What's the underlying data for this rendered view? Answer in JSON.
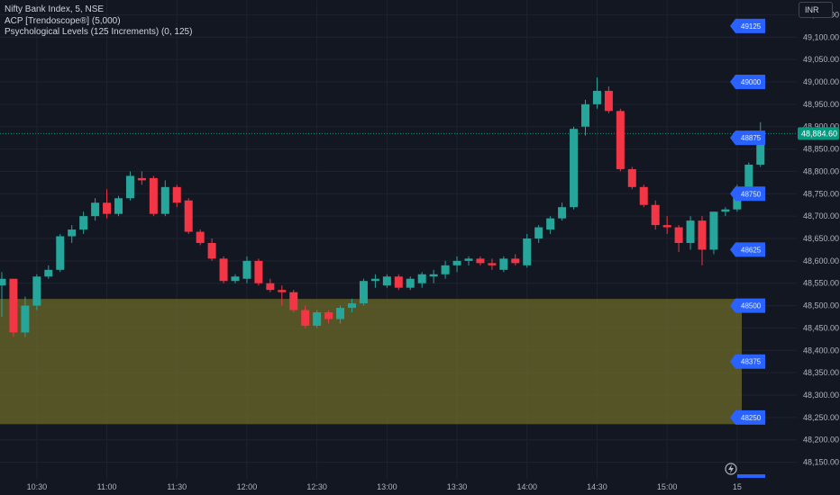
{
  "legend": {
    "symbol": "Nifty Bank Index, 5, NSE",
    "indicator_1": "ACP [Trendoscope®] (5,000)",
    "indicator_2": "Psychological Levels (125 Increments) (0, 125)"
  },
  "currency_button": "INR",
  "colors": {
    "background": "#131722",
    "up": "#26a69a",
    "down": "#f23645",
    "grid": "#1f2330",
    "zone": "#6b6a2a",
    "level_tag": "#2962ff",
    "last_price": "#089981"
  },
  "icons": {
    "replay": "lightning-icon"
  },
  "chart_data": {
    "type": "candlestick",
    "title": "Nifty Bank Index, 5, NSE",
    "ylim": [
      48125,
      49200
    ],
    "y_ticks": [
      48150,
      48200,
      48250,
      48300,
      48350,
      48400,
      48450,
      48500,
      48550,
      48600,
      48650,
      48700,
      48750,
      48800,
      48850,
      48900,
      48950,
      49000,
      49050,
      49100,
      49150
    ],
    "y_tick_labels": [
      "48,150.00",
      "48,200.00",
      "48,250.00",
      "48,300.00",
      "48,350.00",
      "48,400.00",
      "48,450.00",
      "48,500.00",
      "48,550.00",
      "48,600.00",
      "48,650.00",
      "48,700.00",
      "48,750.00",
      "48,800.00",
      "48,850.00",
      "48,900.00",
      "48,950.00",
      "49,000.00",
      "49,050.00",
      "49,100.00",
      "49,150.00"
    ],
    "x_ticks": [
      {
        "label": "10:30",
        "index": 3
      },
      {
        "label": "11:00",
        "index": 9
      },
      {
        "label": "11:30",
        "index": 15
      },
      {
        "label": "12:00",
        "index": 21
      },
      {
        "label": "12:30",
        "index": 27
      },
      {
        "label": "13:00",
        "index": 33
      },
      {
        "label": "13:30",
        "index": 39
      },
      {
        "label": "14:00",
        "index": 45
      },
      {
        "label": "14:30",
        "index": 51
      },
      {
        "label": "15:00",
        "index": 57
      },
      {
        "label": "15",
        "index": 63
      }
    ],
    "candles": [
      {
        "o": 48545,
        "h": 48575,
        "l": 48475,
        "c": 48560
      },
      {
        "o": 48560,
        "h": 48560,
        "l": 48430,
        "c": 48440
      },
      {
        "o": 48440,
        "h": 48520,
        "l": 48430,
        "c": 48500
      },
      {
        "o": 48500,
        "h": 48570,
        "l": 48490,
        "c": 48565
      },
      {
        "o": 48565,
        "h": 48590,
        "l": 48560,
        "c": 48580
      },
      {
        "o": 48580,
        "h": 48660,
        "l": 48575,
        "c": 48655
      },
      {
        "o": 48655,
        "h": 48680,
        "l": 48640,
        "c": 48670
      },
      {
        "o": 48670,
        "h": 48710,
        "l": 48660,
        "c": 48700
      },
      {
        "o": 48700,
        "h": 48740,
        "l": 48690,
        "c": 48730
      },
      {
        "o": 48730,
        "h": 48760,
        "l": 48695,
        "c": 48705
      },
      {
        "o": 48705,
        "h": 48745,
        "l": 48700,
        "c": 48740
      },
      {
        "o": 48740,
        "h": 48800,
        "l": 48735,
        "c": 48790
      },
      {
        "o": 48785,
        "h": 48800,
        "l": 48770,
        "c": 48780
      },
      {
        "o": 48785,
        "h": 48790,
        "l": 48700,
        "c": 48705
      },
      {
        "o": 48705,
        "h": 48780,
        "l": 48700,
        "c": 48765
      },
      {
        "o": 48765,
        "h": 48770,
        "l": 48720,
        "c": 48730
      },
      {
        "o": 48735,
        "h": 48740,
        "l": 48660,
        "c": 48665
      },
      {
        "o": 48665,
        "h": 48670,
        "l": 48635,
        "c": 48640
      },
      {
        "o": 48640,
        "h": 48650,
        "l": 48600,
        "c": 48605
      },
      {
        "o": 48605,
        "h": 48610,
        "l": 48550,
        "c": 48555
      },
      {
        "o": 48555,
        "h": 48570,
        "l": 48550,
        "c": 48565
      },
      {
        "o": 48560,
        "h": 48610,
        "l": 48550,
        "c": 48600
      },
      {
        "o": 48600,
        "h": 48605,
        "l": 48545,
        "c": 48550
      },
      {
        "o": 48550,
        "h": 48560,
        "l": 48530,
        "c": 48535
      },
      {
        "o": 48535,
        "h": 48545,
        "l": 48500,
        "c": 48530
      },
      {
        "o": 48530,
        "h": 48535,
        "l": 48485,
        "c": 48490
      },
      {
        "o": 48490,
        "h": 48500,
        "l": 48450,
        "c": 48455
      },
      {
        "o": 48455,
        "h": 48490,
        "l": 48450,
        "c": 48485
      },
      {
        "o": 48485,
        "h": 48490,
        "l": 48460,
        "c": 48470
      },
      {
        "o": 48470,
        "h": 48500,
        "l": 48460,
        "c": 48495
      },
      {
        "o": 48495,
        "h": 48515,
        "l": 48485,
        "c": 48505
      },
      {
        "o": 48505,
        "h": 48560,
        "l": 48500,
        "c": 48555
      },
      {
        "o": 48555,
        "h": 48570,
        "l": 48540,
        "c": 48560
      },
      {
        "o": 48545,
        "h": 48570,
        "l": 48540,
        "c": 48565
      },
      {
        "o": 48565,
        "h": 48570,
        "l": 48535,
        "c": 48540
      },
      {
        "o": 48540,
        "h": 48565,
        "l": 48535,
        "c": 48560
      },
      {
        "o": 48550,
        "h": 48575,
        "l": 48540,
        "c": 48570
      },
      {
        "o": 48565,
        "h": 48580,
        "l": 48550,
        "c": 48570
      },
      {
        "o": 48570,
        "h": 48600,
        "l": 48560,
        "c": 48590
      },
      {
        "o": 48590,
        "h": 48610,
        "l": 48575,
        "c": 48600
      },
      {
        "o": 48600,
        "h": 48610,
        "l": 48590,
        "c": 48605
      },
      {
        "o": 48605,
        "h": 48610,
        "l": 48590,
        "c": 48595
      },
      {
        "o": 48595,
        "h": 48605,
        "l": 48580,
        "c": 48590
      },
      {
        "o": 48580,
        "h": 48610,
        "l": 48575,
        "c": 48605
      },
      {
        "o": 48605,
        "h": 48615,
        "l": 48590,
        "c": 48595
      },
      {
        "o": 48590,
        "h": 48660,
        "l": 48585,
        "c": 48650
      },
      {
        "o": 48650,
        "h": 48680,
        "l": 48640,
        "c": 48675
      },
      {
        "o": 48670,
        "h": 48700,
        "l": 48660,
        "c": 48695
      },
      {
        "o": 48695,
        "h": 48730,
        "l": 48690,
        "c": 48720
      },
      {
        "o": 48720,
        "h": 48900,
        "l": 48715,
        "c": 48895
      },
      {
        "o": 48900,
        "h": 48960,
        "l": 48880,
        "c": 48950
      },
      {
        "o": 48950,
        "h": 49010,
        "l": 48940,
        "c": 48980
      },
      {
        "o": 48980,
        "h": 48990,
        "l": 48930,
        "c": 48935
      },
      {
        "o": 48935,
        "h": 48940,
        "l": 48800,
        "c": 48805
      },
      {
        "o": 48805,
        "h": 48810,
        "l": 48760,
        "c": 48765
      },
      {
        "o": 48765,
        "h": 48770,
        "l": 48720,
        "c": 48725
      },
      {
        "o": 48725,
        "h": 48735,
        "l": 48670,
        "c": 48680
      },
      {
        "o": 48680,
        "h": 48700,
        "l": 48660,
        "c": 48675
      },
      {
        "o": 48675,
        "h": 48680,
        "l": 48620,
        "c": 48640
      },
      {
        "o": 48640,
        "h": 48700,
        "l": 48625,
        "c": 48690
      },
      {
        "o": 48690,
        "h": 48700,
        "l": 48590,
        "c": 48625
      },
      {
        "o": 48625,
        "h": 48700,
        "l": 48615,
        "c": 48710
      },
      {
        "o": 48710,
        "h": 48720,
        "l": 48700,
        "c": 48715
      },
      {
        "o": 48715,
        "h": 48770,
        "l": 48710,
        "c": 48760
      },
      {
        "o": 48760,
        "h": 48820,
        "l": 48755,
        "c": 48815
      },
      {
        "o": 48815,
        "h": 48910,
        "l": 48810,
        "c": 48884.6
      }
    ],
    "last_price": 48884.6,
    "last_price_label": "48,884.60",
    "psych_levels": [
      {
        "value": 49125,
        "label": "49125"
      },
      {
        "value": 49000,
        "label": "49000"
      },
      {
        "value": 48875,
        "label": "48875"
      },
      {
        "value": 48750,
        "label": "48750"
      },
      {
        "value": 48625,
        "label": "48625"
      },
      {
        "value": 48500,
        "label": "48500"
      },
      {
        "value": 48375,
        "label": "48375"
      },
      {
        "value": 48250,
        "label": "48250"
      }
    ],
    "zone": {
      "low": 48235,
      "high": 48515
    },
    "grid": true
  }
}
